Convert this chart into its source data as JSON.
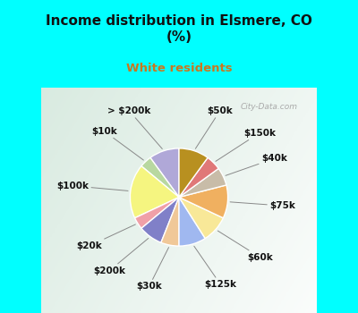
{
  "title": "Income distribution in Elsmere, CO\n(%)",
  "subtitle": "White residents",
  "title_color": "#111111",
  "subtitle_color": "#c87820",
  "bg_cyan": "#00ffff",
  "labels": [
    "> $200k",
    "$10k",
    "$100k",
    "$20k",
    "$200k",
    "$30k",
    "$125k",
    "$60k",
    "$75k",
    "$40k",
    "$150k",
    "$50k"
  ],
  "values": [
    10,
    4,
    18,
    4,
    8,
    6,
    9,
    9,
    11,
    6,
    5,
    10
  ],
  "colors": [
    "#b0a8d8",
    "#b8d8a0",
    "#f5f580",
    "#f0a0a8",
    "#8080c8",
    "#f0c898",
    "#a0b8f0",
    "#f8e898",
    "#f0b060",
    "#c8bca8",
    "#e07878",
    "#b89020"
  ],
  "wedge_linewidth": 1.0,
  "wedge_edgecolor": "#ffffff",
  "startangle": 90,
  "figsize": [
    4.0,
    3.5
  ],
  "dpi": 100,
  "chart_bg_colors": [
    "#c8f0d8",
    "#e8f8f0",
    "#f0f8f4",
    "#ffffff"
  ],
  "label_fontsize": 7.5,
  "label_color": "#111111"
}
